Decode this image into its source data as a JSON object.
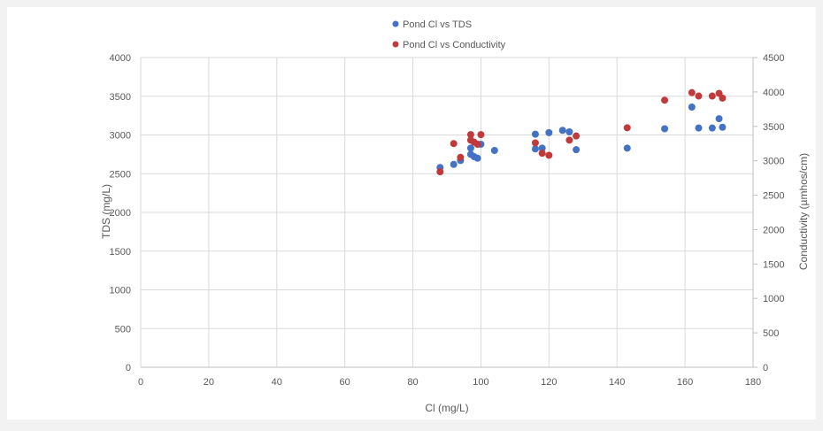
{
  "chart_data": {
    "type": "scatter",
    "xlabel": "Cl (mg/L)",
    "ylabel_left": "TDS (mg/L)",
    "ylabel_right": "Conductivity (µmhos/cm)",
    "xlim": [
      0,
      180
    ],
    "ylim_left": [
      0,
      4000
    ],
    "ylim_right": [
      0,
      4500
    ],
    "x_ticks": [
      "0",
      "20",
      "40",
      "60",
      "80",
      "100",
      "120",
      "140",
      "160",
      "180"
    ],
    "y_left_ticks": [
      "0",
      "500",
      "1000",
      "1500",
      "2000",
      "2500",
      "3000",
      "3500",
      "4000"
    ],
    "y_right_ticks": [
      "0",
      "500",
      "1000",
      "1500",
      "2000",
      "2500",
      "3000",
      "3500",
      "4000",
      "4500"
    ],
    "grid": true,
    "legend_position": "top-center",
    "series": [
      {
        "name": "Pond Cl vs TDS",
        "color": "#4472c4",
        "axis": "left",
        "points": [
          [
            88,
            2580
          ],
          [
            92,
            2620
          ],
          [
            94,
            2670
          ],
          [
            97,
            2750
          ],
          [
            97,
            2830
          ],
          [
            98,
            2720
          ],
          [
            99,
            2700
          ],
          [
            100,
            2880
          ],
          [
            104,
            2800
          ],
          [
            116,
            2820
          ],
          [
            116,
            3010
          ],
          [
            118,
            2830
          ],
          [
            120,
            3030
          ],
          [
            124,
            3060
          ],
          [
            126,
            3040
          ],
          [
            128,
            2810
          ],
          [
            143,
            2830
          ],
          [
            154,
            3080
          ],
          [
            162,
            3360
          ],
          [
            164,
            3090
          ],
          [
            168,
            3090
          ],
          [
            170,
            3210
          ],
          [
            171,
            3100
          ]
        ]
      },
      {
        "name": "Pond Cl vs Conductivity",
        "color": "#c0393b",
        "axis": "right",
        "points": [
          [
            88,
            2840
          ],
          [
            92,
            3250
          ],
          [
            94,
            3050
          ],
          [
            97,
            3300
          ],
          [
            97,
            3380
          ],
          [
            98,
            3270
          ],
          [
            99,
            3240
          ],
          [
            100,
            3380
          ],
          [
            116,
            3260
          ],
          [
            118,
            3110
          ],
          [
            120,
            3080
          ],
          [
            126,
            3300
          ],
          [
            128,
            3360
          ],
          [
            143,
            3480
          ],
          [
            154,
            3880
          ],
          [
            162,
            3990
          ],
          [
            164,
            3940
          ],
          [
            168,
            3940
          ],
          [
            170,
            3980
          ],
          [
            171,
            3910
          ]
        ]
      }
    ]
  }
}
